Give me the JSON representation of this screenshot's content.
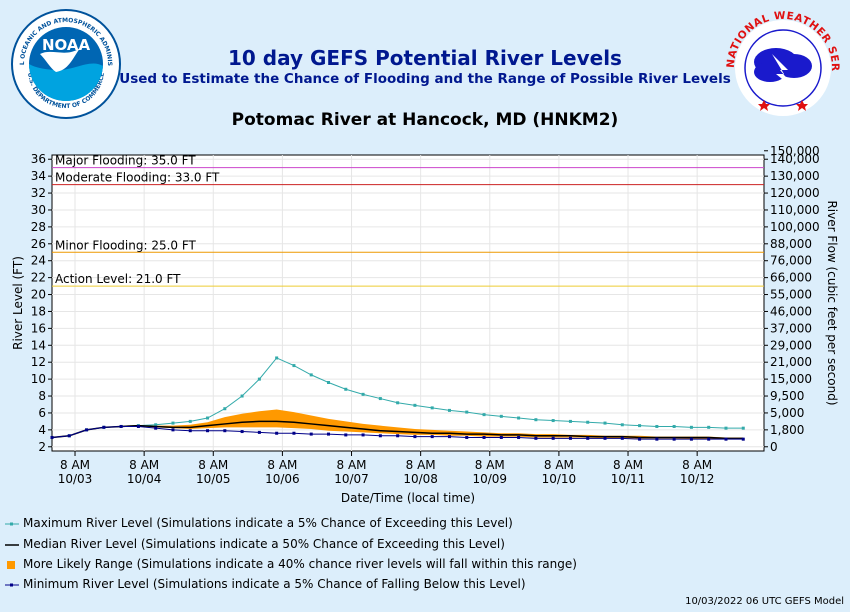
{
  "header": {
    "title": "10 day GEFS Potential River Levels",
    "subtitle": "Used to Estimate the Chance of Flooding and the Range of Possible River Levels",
    "location": "Potomac River at Hancock, MD (HNKM2)",
    "noaa_label": "NOAA",
    "noaa_ring_text": "NATIONAL OCEANIC AND ATMOSPHERIC ADMINISTRATION",
    "noaa_ring_bottom": "U.S. DEPARTMENT OF COMMERCE",
    "nws_ring_text": "NATIONAL WEATHER SERVICE"
  },
  "chart_data": {
    "type": "line",
    "ylabel": "River Level (FT)",
    "y2label": "River Flow (cubic feet per second)",
    "xlabel": "Date/Time (local time)",
    "ylim": [
      1.5,
      36.5
    ],
    "yticks": [
      2,
      4,
      6,
      8,
      10,
      12,
      14,
      16,
      18,
      20,
      22,
      24,
      26,
      28,
      30,
      32,
      34,
      36
    ],
    "y2ticks": [
      {
        "level": 2,
        "label": "0"
      },
      {
        "level": 4,
        "label": "1,800"
      },
      {
        "level": 6,
        "label": "5,000"
      },
      {
        "level": 8,
        "label": "9,500"
      },
      {
        "level": 10,
        "label": "15,000"
      },
      {
        "level": 12,
        "label": "21,000"
      },
      {
        "level": 14,
        "label": "29,000"
      },
      {
        "level": 16,
        "label": "37,000"
      },
      {
        "level": 18,
        "label": "46,000"
      },
      {
        "level": 20,
        "label": "55,000"
      },
      {
        "level": 22,
        "label": "66,000"
      },
      {
        "level": 24,
        "label": "76,000"
      },
      {
        "level": 26,
        "label": "88,000"
      },
      {
        "level": 28,
        "label": "100,000"
      },
      {
        "level": 30,
        "label": "110,000"
      },
      {
        "level": 32,
        "label": "120,000"
      },
      {
        "level": 34,
        "label": "130,000"
      },
      {
        "level": 36,
        "label": "140,000"
      },
      {
        "level": 37,
        "label": "150,000"
      }
    ],
    "xticks": [
      {
        "day": 0.333,
        "time": "8 AM",
        "date": "10/03"
      },
      {
        "day": 1.333,
        "time": "8 AM",
        "date": "10/04"
      },
      {
        "day": 2.333,
        "time": "8 AM",
        "date": "10/05"
      },
      {
        "day": 3.333,
        "time": "8 AM",
        "date": "10/06"
      },
      {
        "day": 4.333,
        "time": "8 AM",
        "date": "10/07"
      },
      {
        "day": 5.333,
        "time": "8 AM",
        "date": "10/08"
      },
      {
        "day": 6.333,
        "time": "8 AM",
        "date": "10/09"
      },
      {
        "day": 7.333,
        "time": "8 AM",
        "date": "10/10"
      },
      {
        "day": 8.333,
        "time": "8 AM",
        "date": "10/11"
      },
      {
        "day": 9.333,
        "time": "8 AM",
        "date": "10/12"
      }
    ],
    "xlim": [
      0,
      10.3
    ],
    "thresholds": [
      {
        "label": "Major Flooding: 35.0 FT",
        "value": 35.0,
        "color": "#cc44cc"
      },
      {
        "label": "Moderate Flooding: 33.0 FT",
        "value": 33.0,
        "color": "#cc2222"
      },
      {
        "label": "Minor Flooding: 25.0 FT",
        "value": 25.0,
        "color": "#ee9900"
      },
      {
        "label": "Action Level: 21.0 FT",
        "value": 21.0,
        "color": "#eecc33"
      }
    ],
    "series": [
      {
        "name": "Maximum River Level (Simulations indicate a 5% Chance of Exceeding this Level)",
        "color": "#33aaaa",
        "x": [
          0,
          0.25,
          0.5,
          0.75,
          1,
          1.25,
          1.5,
          1.75,
          2,
          2.25,
          2.5,
          2.75,
          3,
          3.25,
          3.5,
          3.75,
          4,
          4.25,
          4.5,
          4.75,
          5,
          5.25,
          5.5,
          5.75,
          6,
          6.25,
          6.5,
          6.75,
          7,
          7.25,
          7.5,
          7.75,
          8,
          8.25,
          8.5,
          8.75,
          9,
          9.25,
          9.5,
          9.75,
          10
        ],
        "values": [
          3.1,
          3.3,
          4.0,
          4.3,
          4.4,
          4.5,
          4.6,
          4.8,
          5.0,
          5.4,
          6.5,
          8.0,
          10.0,
          12.5,
          11.6,
          10.5,
          9.6,
          8.8,
          8.2,
          7.7,
          7.2,
          6.9,
          6.6,
          6.3,
          6.1,
          5.8,
          5.6,
          5.4,
          5.2,
          5.1,
          5.0,
          4.9,
          4.8,
          4.6,
          4.5,
          4.4,
          4.4,
          4.3,
          4.3,
          4.2,
          4.2
        ]
      },
      {
        "name": "Median River Level (Simulations indicate a 50% Chance of Exceeding this Level)",
        "color": "#000000",
        "x": [
          0,
          0.25,
          0.5,
          0.75,
          1,
          1.25,
          1.5,
          1.75,
          2,
          2.25,
          2.5,
          2.75,
          3,
          3.25,
          3.5,
          3.75,
          4,
          4.25,
          4.5,
          4.75,
          5,
          5.25,
          5.5,
          5.75,
          6,
          6.25,
          6.5,
          6.75,
          7,
          7.25,
          7.5,
          7.75,
          8,
          8.25,
          8.5,
          8.75,
          9,
          9.25,
          9.5,
          9.75,
          10
        ],
        "values": [
          3.1,
          3.3,
          4.0,
          4.3,
          4.4,
          4.5,
          4.4,
          4.3,
          4.3,
          4.5,
          4.7,
          4.9,
          5.0,
          5.0,
          4.9,
          4.7,
          4.5,
          4.3,
          4.1,
          3.9,
          3.8,
          3.7,
          3.6,
          3.6,
          3.5,
          3.5,
          3.4,
          3.4,
          3.3,
          3.3,
          3.3,
          3.2,
          3.2,
          3.2,
          3.1,
          3.1,
          3.1,
          3.1,
          3.1,
          3.0,
          3.0
        ]
      },
      {
        "name": "Minimum River Level (Simulations indicate a 5% Chance of Falling Below this Level)",
        "color": "#000088",
        "x": [
          0,
          0.25,
          0.5,
          0.75,
          1,
          1.25,
          1.5,
          1.75,
          2,
          2.25,
          2.5,
          2.75,
          3,
          3.25,
          3.5,
          3.75,
          4,
          4.25,
          4.5,
          4.75,
          5,
          5.25,
          5.5,
          5.75,
          6,
          6.25,
          6.5,
          6.75,
          7,
          7.25,
          7.5,
          7.75,
          8,
          8.25,
          8.5,
          8.75,
          9,
          9.25,
          9.5,
          9.75,
          10
        ],
        "values": [
          3.1,
          3.3,
          4.0,
          4.3,
          4.4,
          4.4,
          4.2,
          4.0,
          3.9,
          3.9,
          3.9,
          3.8,
          3.7,
          3.6,
          3.6,
          3.5,
          3.5,
          3.4,
          3.4,
          3.3,
          3.3,
          3.2,
          3.2,
          3.2,
          3.1,
          3.1,
          3.1,
          3.1,
          3.0,
          3.0,
          3.0,
          3.0,
          3.0,
          3.0,
          2.9,
          2.9,
          2.9,
          2.9,
          2.9,
          2.9,
          2.9
        ]
      }
    ],
    "range": {
      "name": "More Likely Range (Simulations indicate a 40% chance river levels will fall within this range)",
      "color": "#ff9900",
      "x": [
        0,
        0.25,
        0.5,
        0.75,
        1,
        1.25,
        1.5,
        1.75,
        2,
        2.25,
        2.5,
        2.75,
        3,
        3.25,
        3.5,
        3.75,
        4,
        4.25,
        4.5,
        4.75,
        5,
        5.25,
        5.5,
        5.75,
        6,
        6.25,
        6.5,
        6.75,
        7,
        7.25,
        7.5,
        7.75,
        8,
        8.25,
        8.5,
        8.75,
        9,
        9.25,
        9.5,
        9.75,
        10
      ],
      "upper": [
        3.1,
        3.3,
        4.0,
        4.3,
        4.4,
        4.5,
        4.5,
        4.5,
        4.6,
        4.9,
        5.5,
        5.9,
        6.2,
        6.4,
        6.1,
        5.7,
        5.3,
        5.0,
        4.7,
        4.5,
        4.3,
        4.1,
        4.0,
        3.9,
        3.8,
        3.7,
        3.6,
        3.6,
        3.5,
        3.5,
        3.4,
        3.4,
        3.3,
        3.3,
        3.3,
        3.2,
        3.2,
        3.2,
        3.2,
        3.1,
        3.1
      ],
      "lower": [
        3.1,
        3.3,
        4.0,
        4.3,
        4.4,
        4.4,
        4.3,
        4.2,
        4.1,
        4.2,
        4.3,
        4.3,
        4.3,
        4.3,
        4.2,
        4.1,
        3.9,
        3.8,
        3.7,
        3.6,
        3.5,
        3.4,
        3.4,
        3.3,
        3.3,
        3.2,
        3.2,
        3.2,
        3.1,
        3.1,
        3.1,
        3.1,
        3.0,
        3.0,
        3.0,
        3.0,
        3.0,
        2.9,
        2.9,
        2.9,
        2.9
      ]
    }
  },
  "legend": {
    "max": "Maximum River Level (Simulations indicate a 5% Chance of Exceeding this Level)",
    "median": "Median River Level (Simulations indicate a 50% Chance of Exceeding this Level)",
    "range": "More Likely Range (Simulations indicate a 40% chance river levels will fall within this range)",
    "min": "Minimum River Level (Simulations indicate a 5% Chance of Falling Below this Level)"
  },
  "footer": "10/03/2022 06 UTC GEFS Model",
  "colors": {
    "title": "#00188f",
    "background": "#dceefb",
    "plot": "#ffffff",
    "noaa_blue": "#00529b",
    "nws_red": "#e01010"
  }
}
